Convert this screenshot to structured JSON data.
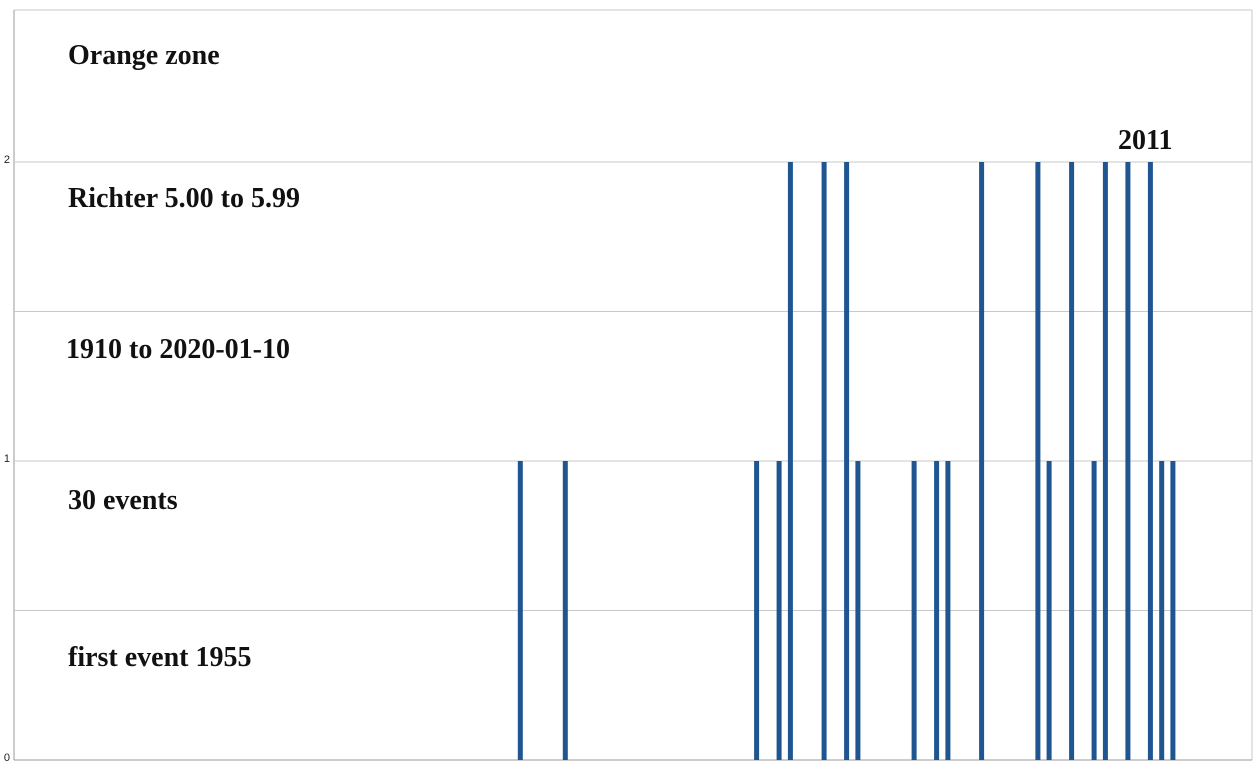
{
  "annotations": {
    "line1": "Orange zone",
    "line2": "Richter 5.00 to 5.99",
    "line3": "1910 to 2020-01-10",
    "line4": "30 events",
    "line5": "first event 1955",
    "peak_label": "2011"
  },
  "chart_data": {
    "type": "bar",
    "title": "",
    "xlabel": "",
    "ylabel": "",
    "x": [
      1955,
      1959,
      1976,
      1978,
      1979,
      1982,
      1984,
      1985,
      1990,
      1992,
      1993,
      1996,
      2001,
      2002,
      2004,
      2006,
      2007,
      2009,
      2011,
      2012,
      2013
    ],
    "values": [
      1,
      1,
      1,
      1,
      2,
      2,
      2,
      1,
      1,
      1,
      1,
      2,
      2,
      1,
      2,
      1,
      2,
      2,
      2,
      1,
      1
    ],
    "ylim": [
      0,
      2.5
    ],
    "yticks": [
      0,
      1,
      2
    ],
    "grid": true,
    "bar_color": "#1f5591",
    "grid_color": "#c8c8c8"
  }
}
